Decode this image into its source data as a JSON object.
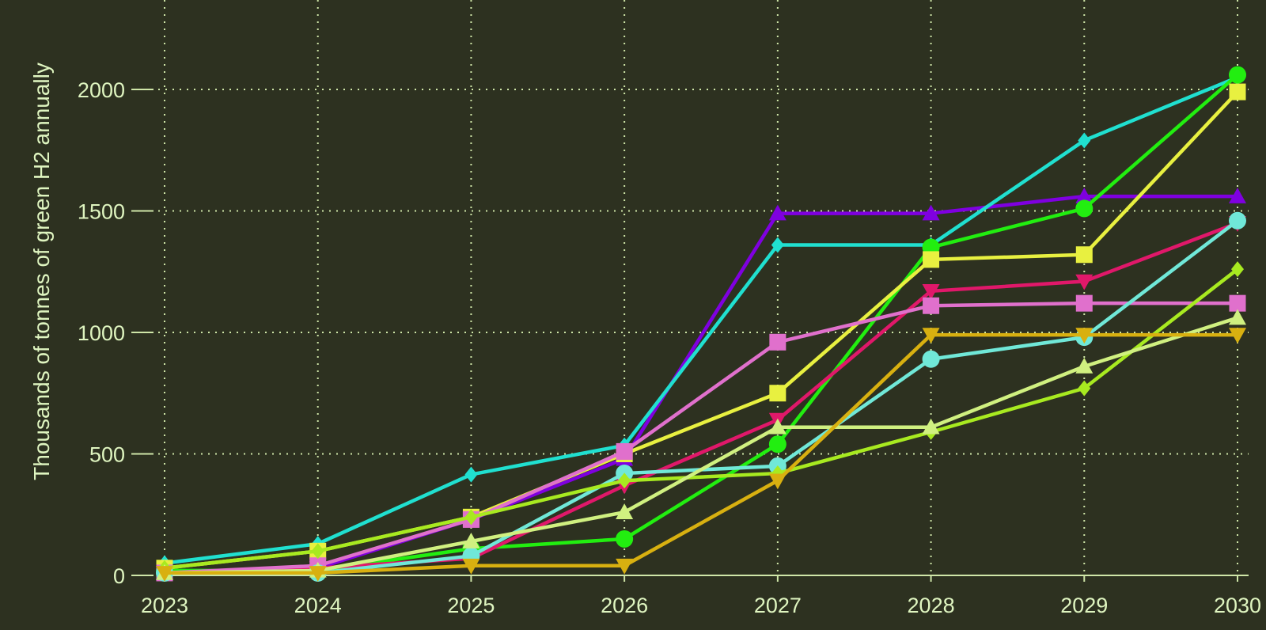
{
  "chart_data": {
    "type": "line",
    "title": "",
    "xlabel": "",
    "ylabel": "Thousands of tonnes of green H2 annually",
    "x": [
      2023,
      2024,
      2025,
      2026,
      2027,
      2028,
      2029,
      2030
    ],
    "xlim": [
      2023,
      2030
    ],
    "ylim": [
      0,
      2000
    ],
    "yticks": [
      0,
      500,
      1000,
      1500,
      2000
    ],
    "grid": true,
    "legend": "none",
    "series": [
      {
        "color": "#7f00e0",
        "marker": "triangle-up",
        "values": [
          10,
          30,
          230,
          480,
          1490,
          1490,
          1560,
          1560
        ]
      },
      {
        "color": "#20e0d0",
        "marker": "diamond",
        "values": [
          50,
          130,
          415,
          535,
          1360,
          1360,
          1790,
          2050
        ]
      },
      {
        "color": "#22ee10",
        "marker": "circle",
        "values": [
          20,
          20,
          110,
          150,
          540,
          1350,
          1510,
          2060
        ]
      },
      {
        "color": "#e8f040",
        "marker": "square",
        "values": [
          30,
          100,
          240,
          500,
          750,
          1300,
          1320,
          1990
        ]
      },
      {
        "color": "#e0186a",
        "marker": "triangle-down",
        "values": [
          10,
          30,
          70,
          370,
          640,
          1170,
          1210,
          1450
        ]
      },
      {
        "color": "#e070cc",
        "marker": "square",
        "values": [
          10,
          40,
          230,
          510,
          960,
          1110,
          1120,
          1120
        ]
      },
      {
        "color": "#70e8d8",
        "marker": "circle",
        "values": [
          10,
          10,
          80,
          420,
          450,
          890,
          980,
          1460
        ]
      },
      {
        "color": "#a8ea20",
        "marker": "diamond",
        "values": [
          30,
          100,
          240,
          390,
          420,
          590,
          770,
          1260
        ]
      },
      {
        "color": "#d0f080",
        "marker": "triangle-up",
        "values": [
          10,
          20,
          140,
          260,
          610,
          610,
          860,
          1060
        ]
      },
      {
        "color": "#d8b010",
        "marker": "triangle-down",
        "values": [
          10,
          10,
          40,
          40,
          390,
          990,
          990,
          990
        ]
      }
    ]
  }
}
